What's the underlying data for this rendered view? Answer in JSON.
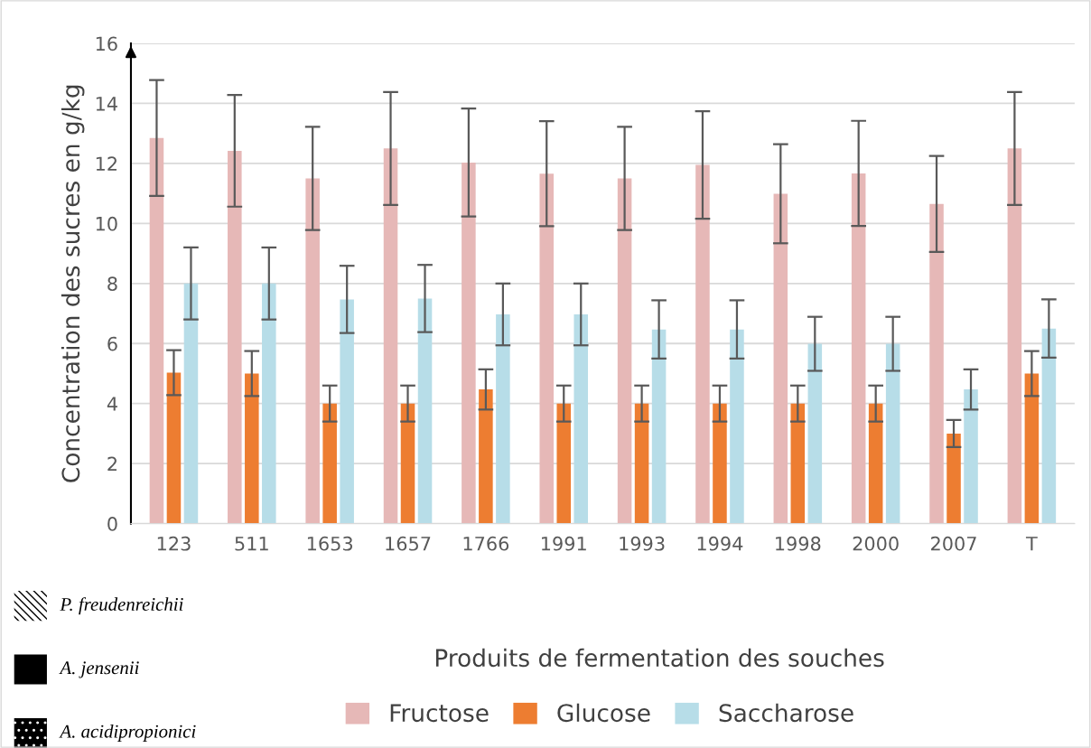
{
  "chart_data": {
    "type": "bar",
    "xlabel": "Produits de fermentation des souches",
    "ylabel": "Concentration des sucres en g/kg",
    "categories": [
      "123",
      "511",
      "1653",
      "1657",
      "1766",
      "1991",
      "1993",
      "1994",
      "1998",
      "2000",
      "2007",
      "T"
    ],
    "series": [
      {
        "name": "Fructose",
        "color": "#e6b8b7",
        "values": [
          12.85,
          12.42,
          11.5,
          12.5,
          12.03,
          11.66,
          11.5,
          11.95,
          10.99,
          11.67,
          10.65,
          12.5
        ],
        "errors": [
          1.93,
          1.86,
          1.72,
          1.88,
          1.8,
          1.75,
          1.72,
          1.79,
          1.65,
          1.75,
          1.6,
          1.88
        ]
      },
      {
        "name": "Glucose",
        "color": "#ed7d31",
        "values": [
          5.03,
          5.0,
          4.0,
          4.0,
          4.47,
          4.0,
          4.0,
          4.0,
          4.0,
          4.0,
          3.0,
          5.0
        ],
        "errors": [
          0.75,
          0.75,
          0.6,
          0.6,
          0.67,
          0.6,
          0.6,
          0.6,
          0.6,
          0.6,
          0.45,
          0.75
        ]
      },
      {
        "name": "Saccharose",
        "color": "#b7dde8",
        "values": [
          8.0,
          8.0,
          7.47,
          7.5,
          6.97,
          6.97,
          6.47,
          6.47,
          5.99,
          5.99,
          4.47,
          6.5
        ],
        "errors": [
          1.2,
          1.2,
          1.12,
          1.12,
          1.03,
          1.03,
          0.97,
          0.97,
          0.9,
          0.9,
          0.67,
          0.97
        ]
      }
    ],
    "ylim": [
      0,
      16
    ],
    "yticks": [
      0,
      2,
      4,
      6,
      8,
      10,
      12,
      14,
      16
    ],
    "grid": "y",
    "legend": "bottom",
    "annotations": [
      "P. freudenreichii",
      "A. jensenii",
      "A. acidipropionici"
    ]
  }
}
